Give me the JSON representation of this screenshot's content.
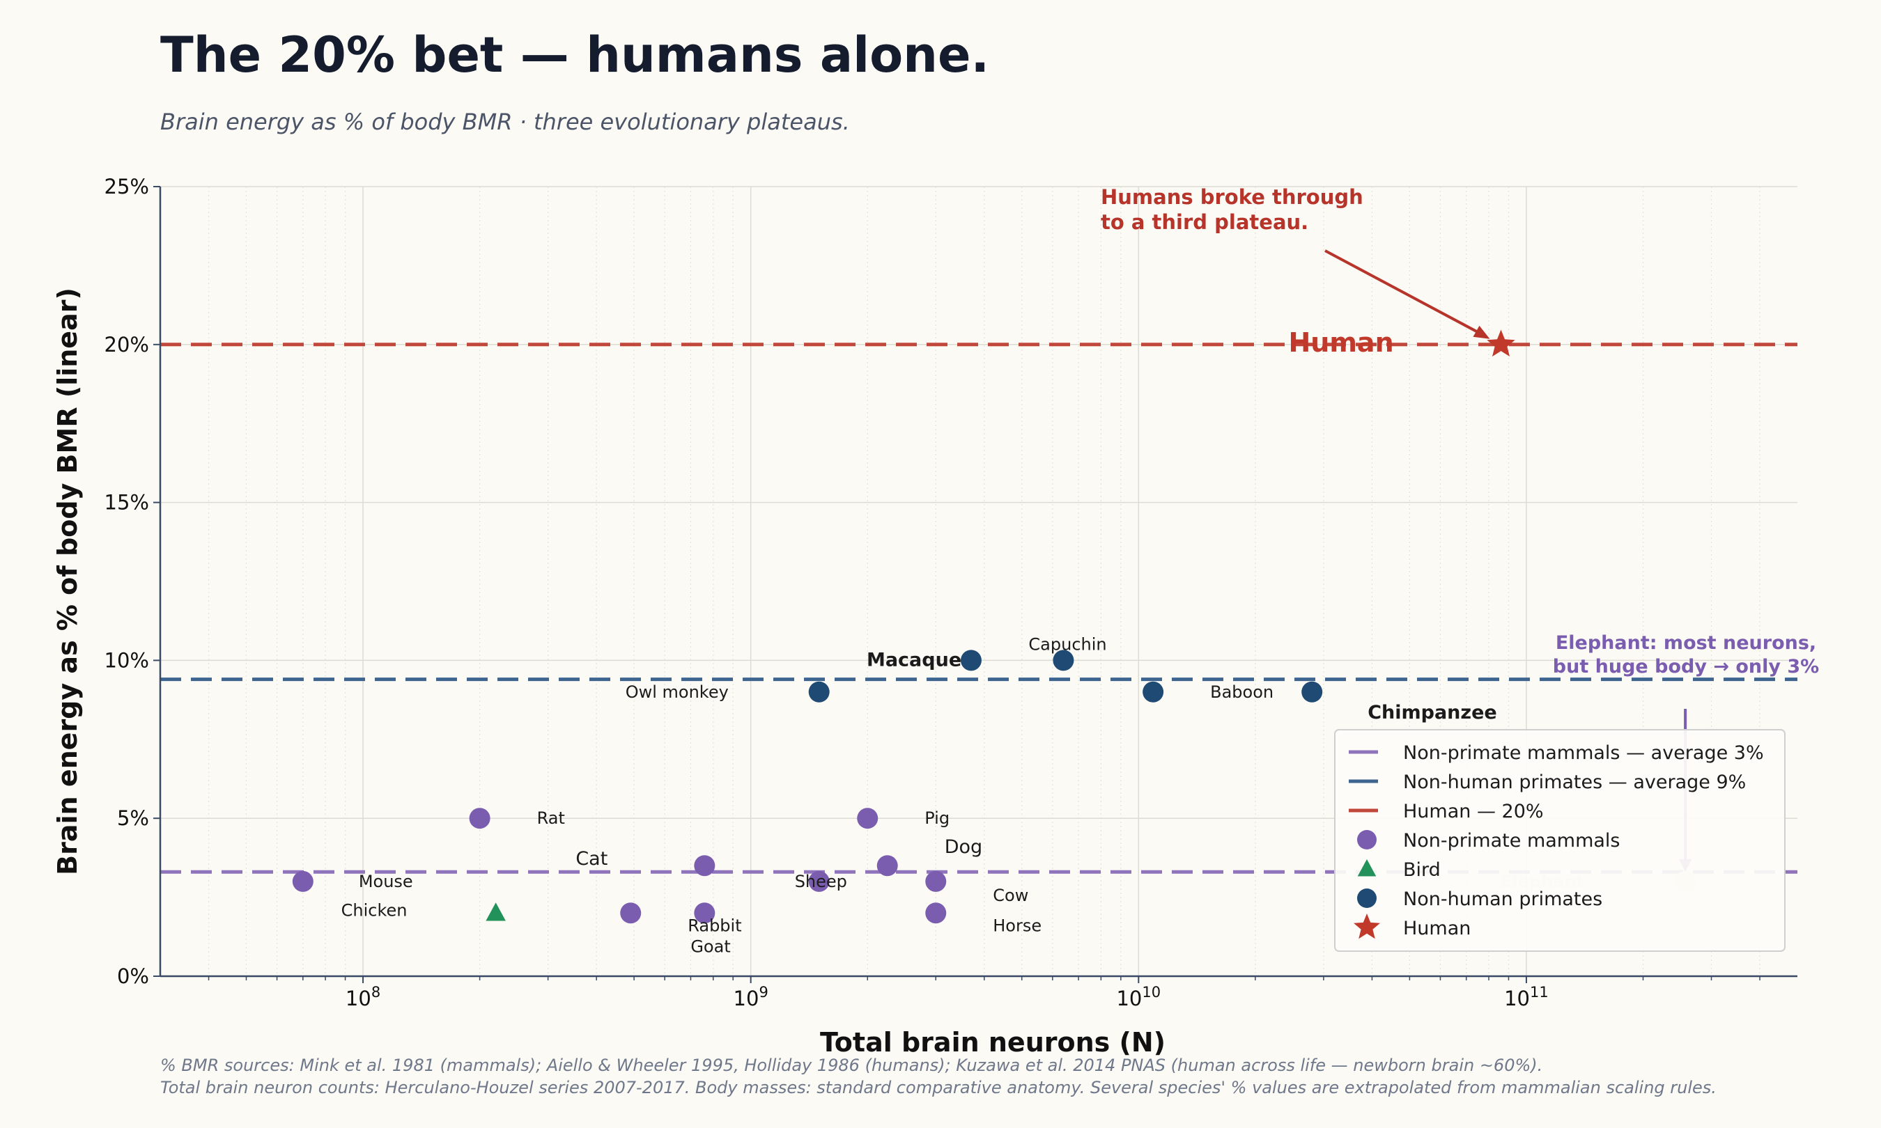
{
  "title": "The 20% bet — humans alone.",
  "subtitle": "Brain energy as % of body BMR  ·  three evolutionary plateaus.",
  "footnotes": [
    "% BMR sources: Mink et al. 1981 (mammals); Aiello & Wheeler 1995, Holliday 1986 (humans);  Kuzawa et al. 2014 PNAS (human across life — newborn brain ~60%).",
    "Total brain neuron counts: Herculano-Houzel series 2007-2017.  Body masses: standard comparative anatomy.  Several species' % values are extrapolated from mammalian scaling rules."
  ],
  "colors": {
    "nonprimate": "#7b5db0",
    "bird": "#23915a",
    "primate": "#1f4a73",
    "human": "#c0392b",
    "line_nonprimate": "#8f74bb",
    "line_primate": "#3d6590",
    "line_human": "#c0473a",
    "axis": "#3a4a66",
    "annotation_human": "#b7342b",
    "annotation_elephant": "#7b5db0"
  },
  "chart_data": {
    "type": "scatter",
    "xlabel": "Total brain neurons   (N)",
    "ylabel": "Brain energy as % of body BMR   (linear)",
    "xscale": "log",
    "xlim": [
      30000000,
      500000000000
    ],
    "ylim": [
      0,
      25
    ],
    "xticks": [
      {
        "value": 100000000,
        "base": "10",
        "exp": "8"
      },
      {
        "value": 1000000000,
        "base": "10",
        "exp": "9"
      },
      {
        "value": 10000000000,
        "base": "10",
        "exp": "10"
      },
      {
        "value": 100000000000,
        "base": "10",
        "exp": "11"
      }
    ],
    "yticks": [
      {
        "value": 0,
        "label": "0%"
      },
      {
        "value": 5,
        "label": "5%"
      },
      {
        "value": 10,
        "label": "10%"
      },
      {
        "value": 15,
        "label": "15%"
      },
      {
        "value": 20,
        "label": "20%"
      },
      {
        "value": 25,
        "label": "25%"
      }
    ],
    "grid": true,
    "legend_position": "lower-right",
    "reference_lines": [
      {
        "name": "Non-primate mammals — average 3%",
        "y": 3.3,
        "color_key": "line_nonprimate"
      },
      {
        "name": "Non-human primates — average 9%",
        "y": 9.4,
        "color_key": "line_primate"
      },
      {
        "name": "Human — 20%",
        "y": 20,
        "color_key": "line_human"
      }
    ],
    "series": [
      {
        "name": "Non-primate mammals",
        "marker": "circle",
        "color_key": "nonprimate",
        "points": [
          {
            "label": "Mouse",
            "x": 70000000,
            "y": 3
          },
          {
            "label": "Rat",
            "x": 200000000,
            "y": 5
          },
          {
            "label": "Rabbit",
            "x": 490000000,
            "y": 2
          },
          {
            "label": "Cat",
            "x": 760000000,
            "y": 3.5
          },
          {
            "label": "Goat",
            "x": 760000000,
            "y": 2
          },
          {
            "label": "Sheep",
            "x": 1500000000,
            "y": 3
          },
          {
            "label": "Pig",
            "x": 2000000000,
            "y": 5
          },
          {
            "label": "Dog",
            "x": 2250000000,
            "y": 3.5
          },
          {
            "label": "Cow",
            "x": 3000000000,
            "y": 3
          },
          {
            "label": "Horse",
            "x": 3000000000,
            "y": 2
          },
          {
            "label": "Elephant",
            "x": 257000000000,
            "y": 3
          }
        ]
      },
      {
        "name": "Bird",
        "marker": "triangle",
        "color_key": "bird",
        "points": [
          {
            "label": "Chicken",
            "x": 220000000,
            "y": 2
          }
        ]
      },
      {
        "name": "Non-human primates",
        "marker": "circle",
        "color_key": "primate",
        "points": [
          {
            "label": "Owl monkey",
            "x": 1500000000,
            "y": 9
          },
          {
            "label": "Macaque",
            "x": 3700000000,
            "y": 10
          },
          {
            "label": "Capuchin",
            "x": 6400000000,
            "y": 10
          },
          {
            "label": "Baboon",
            "x": 10900000000,
            "y": 9
          },
          {
            "label": "Chimpanzee",
            "x": 28000000000,
            "y": 9
          }
        ]
      },
      {
        "name": "Human",
        "marker": "star",
        "color_key": "human",
        "points": [
          {
            "label": "Human",
            "x": 86000000000,
            "y": 20
          }
        ]
      }
    ],
    "annotations": [
      {
        "lines": [
          "Humans broke through",
          "to a third plateau."
        ],
        "color_key": "annotation_human",
        "target": "Human"
      },
      {
        "lines": [
          "Elephant: most neurons,",
          "but huge body → only 3%"
        ],
        "color_key": "annotation_elephant",
        "target": "Elephant"
      }
    ]
  }
}
